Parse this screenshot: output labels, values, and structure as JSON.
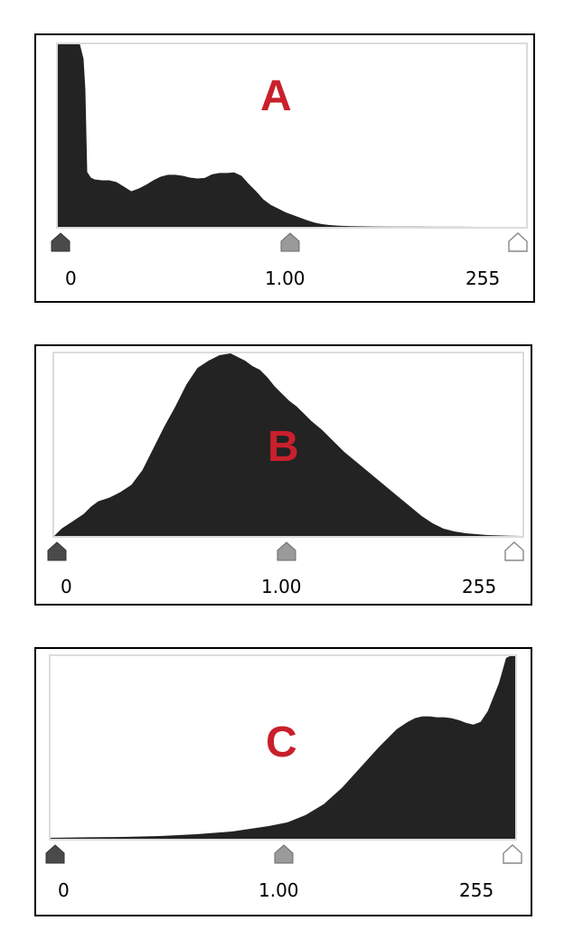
{
  "colors": {
    "fill": "#232323",
    "plot_border": "#dcdcdc",
    "letter": "#c9202c",
    "slider_black": "#4a4a4a",
    "slider_gray": "#9a9a9a",
    "slider_white": "#ffffff"
  },
  "chart_data": [
    {
      "type": "area",
      "panel_label": "A",
      "x": [
        0,
        4,
        8,
        12,
        14,
        15,
        16,
        18,
        20,
        24,
        28,
        32,
        36,
        40,
        44,
        48,
        52,
        56,
        60,
        64,
        68,
        72,
        76,
        80,
        84,
        88,
        92,
        96,
        100,
        104,
        108,
        112,
        116,
        120,
        124,
        128,
        132,
        136,
        140,
        144,
        148,
        152,
        156,
        160,
        164,
        168,
        172,
        180,
        188,
        196,
        204,
        212,
        220,
        230,
        240,
        250,
        255
      ],
      "values": [
        100,
        100,
        100,
        100,
        92,
        75,
        30,
        27,
        26,
        25.5,
        25.5,
        24.5,
        22,
        19.5,
        21,
        23,
        25.5,
        27.5,
        28.5,
        28.5,
        28,
        27,
        26.5,
        26.8,
        28.8,
        29.5,
        29.5,
        29.8,
        28,
        23.5,
        19.5,
        15,
        12,
        10,
        8,
        6.5,
        5,
        3.5,
        2.3,
        1.5,
        1,
        0.7,
        0.5,
        0.4,
        0.3,
        0.25,
        0.2,
        0.15,
        0.1,
        0.1,
        0.05,
        0.05,
        0.05,
        0.03,
        0.02,
        0.01,
        0
      ],
      "slider_labels": [
        "0",
        "1.00",
        "255"
      ]
    },
    {
      "type": "area",
      "panel_label": "B",
      "x": [
        0,
        4,
        10,
        16,
        20,
        24,
        30,
        36,
        42,
        48,
        54,
        60,
        66,
        72,
        78,
        84,
        90,
        96,
        100,
        104,
        108,
        112,
        116,
        120,
        124,
        128,
        132,
        136,
        140,
        146,
        152,
        158,
        164,
        170,
        176,
        182,
        188,
        194,
        200,
        206,
        212,
        218,
        224,
        230,
        236,
        242,
        248,
        255
      ],
      "values": [
        0,
        4,
        8,
        12,
        16,
        19,
        21,
        24,
        28,
        36,
        48,
        60,
        71,
        83,
        92,
        96,
        99,
        100,
        98,
        96,
        93,
        91,
        87,
        82,
        78,
        74,
        71,
        67,
        63,
        58,
        52,
        46,
        41,
        36,
        31,
        26,
        21,
        16,
        11,
        7,
        4,
        2.5,
        1.5,
        1,
        0.5,
        0.3,
        0.1,
        0
      ],
      "slider_labels": [
        "0",
        "1.00",
        "255"
      ]
    },
    {
      "type": "area",
      "panel_label": "C",
      "x": [
        0,
        20,
        40,
        60,
        80,
        100,
        110,
        120,
        130,
        140,
        150,
        160,
        170,
        180,
        190,
        196,
        200,
        204,
        208,
        212,
        216,
        220,
        224,
        228,
        232,
        236,
        240,
        244,
        246,
        248,
        250,
        252,
        253,
        254,
        255
      ],
      "values": [
        0.5,
        0.8,
        1,
        1.5,
        2.5,
        4,
        5.5,
        7,
        9,
        13,
        19,
        28,
        39,
        50,
        60,
        64,
        66,
        67,
        67,
        66.5,
        66.5,
        66,
        65,
        63.5,
        62.5,
        64,
        70,
        80,
        85,
        92,
        99,
        100,
        100,
        100,
        100
      ],
      "slider_labels": [
        "0",
        "1.00",
        "255"
      ]
    }
  ]
}
